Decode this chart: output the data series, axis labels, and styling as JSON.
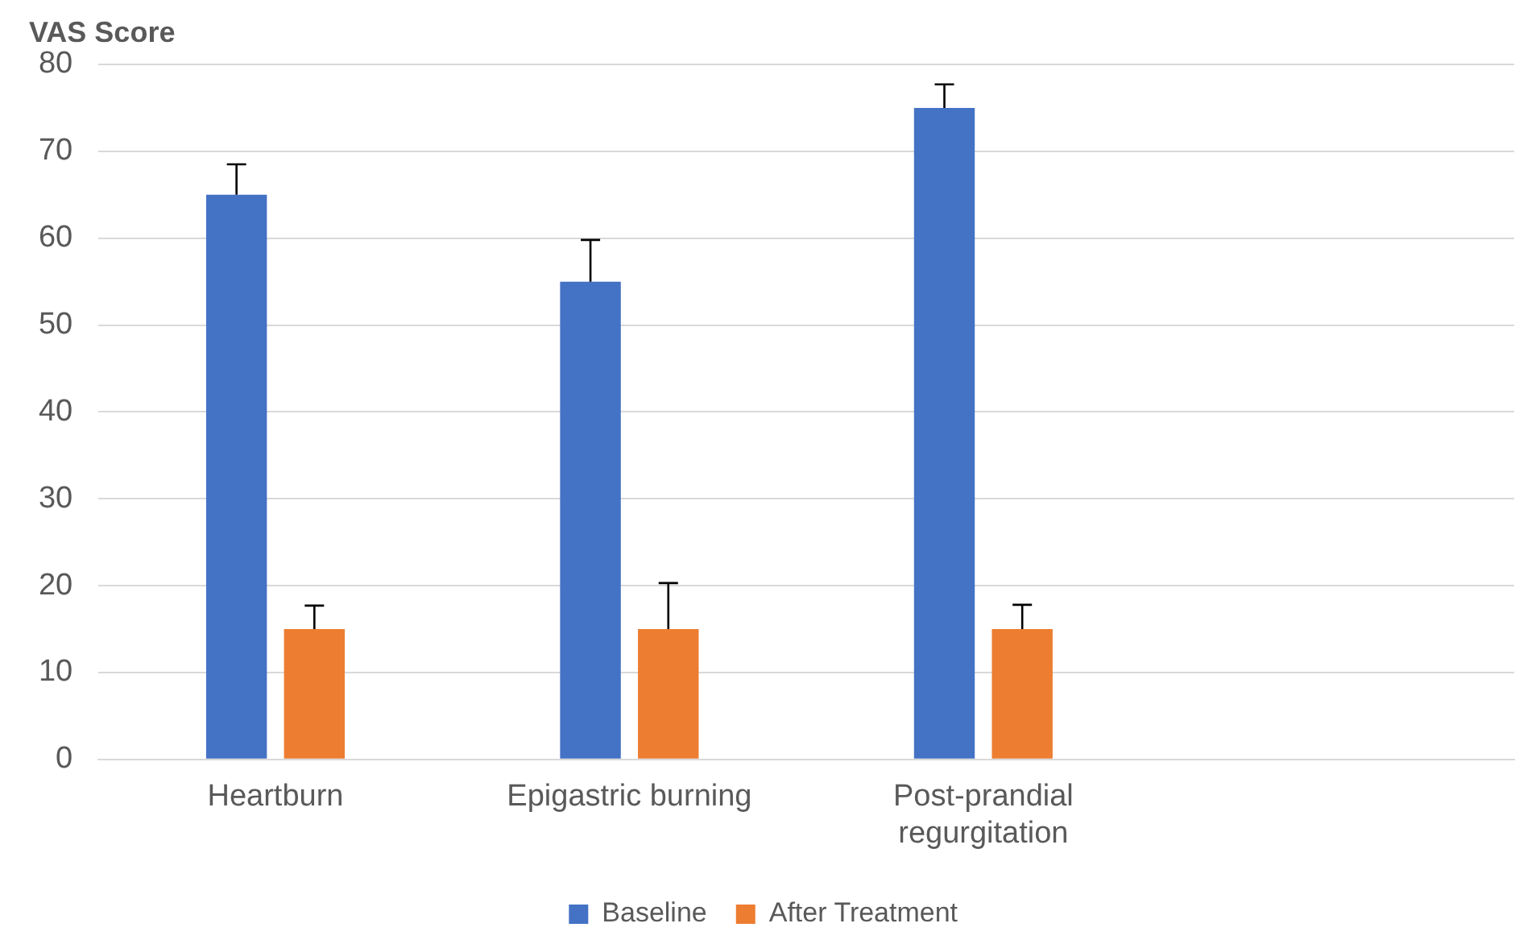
{
  "chart_data": {
    "type": "bar",
    "ylabel": "VAS Score",
    "categories": [
      "Heartburn",
      "Epigastric burning",
      "Post-prandial regurgitation",
      null
    ],
    "series": [
      {
        "name": "Baseline",
        "color": "#4472c4",
        "values": [
          65,
          55,
          75,
          null
        ],
        "errors": [
          [
            65,
            68.5
          ],
          [
            55,
            59.8
          ],
          [
            75,
            77.7
          ],
          null
        ]
      },
      {
        "name": "After Treatment",
        "color": "#ed7d31",
        "values": [
          15,
          15,
          15,
          null
        ],
        "errors": [
          [
            15,
            17.7
          ],
          [
            15,
            20.3
          ],
          [
            15,
            17.8
          ],
          null
        ]
      }
    ],
    "ylim": [
      0,
      80
    ],
    "yticks": [
      0,
      10,
      20,
      30,
      40,
      50,
      60,
      70,
      80
    ],
    "grid": "y",
    "legend": "bottom"
  }
}
